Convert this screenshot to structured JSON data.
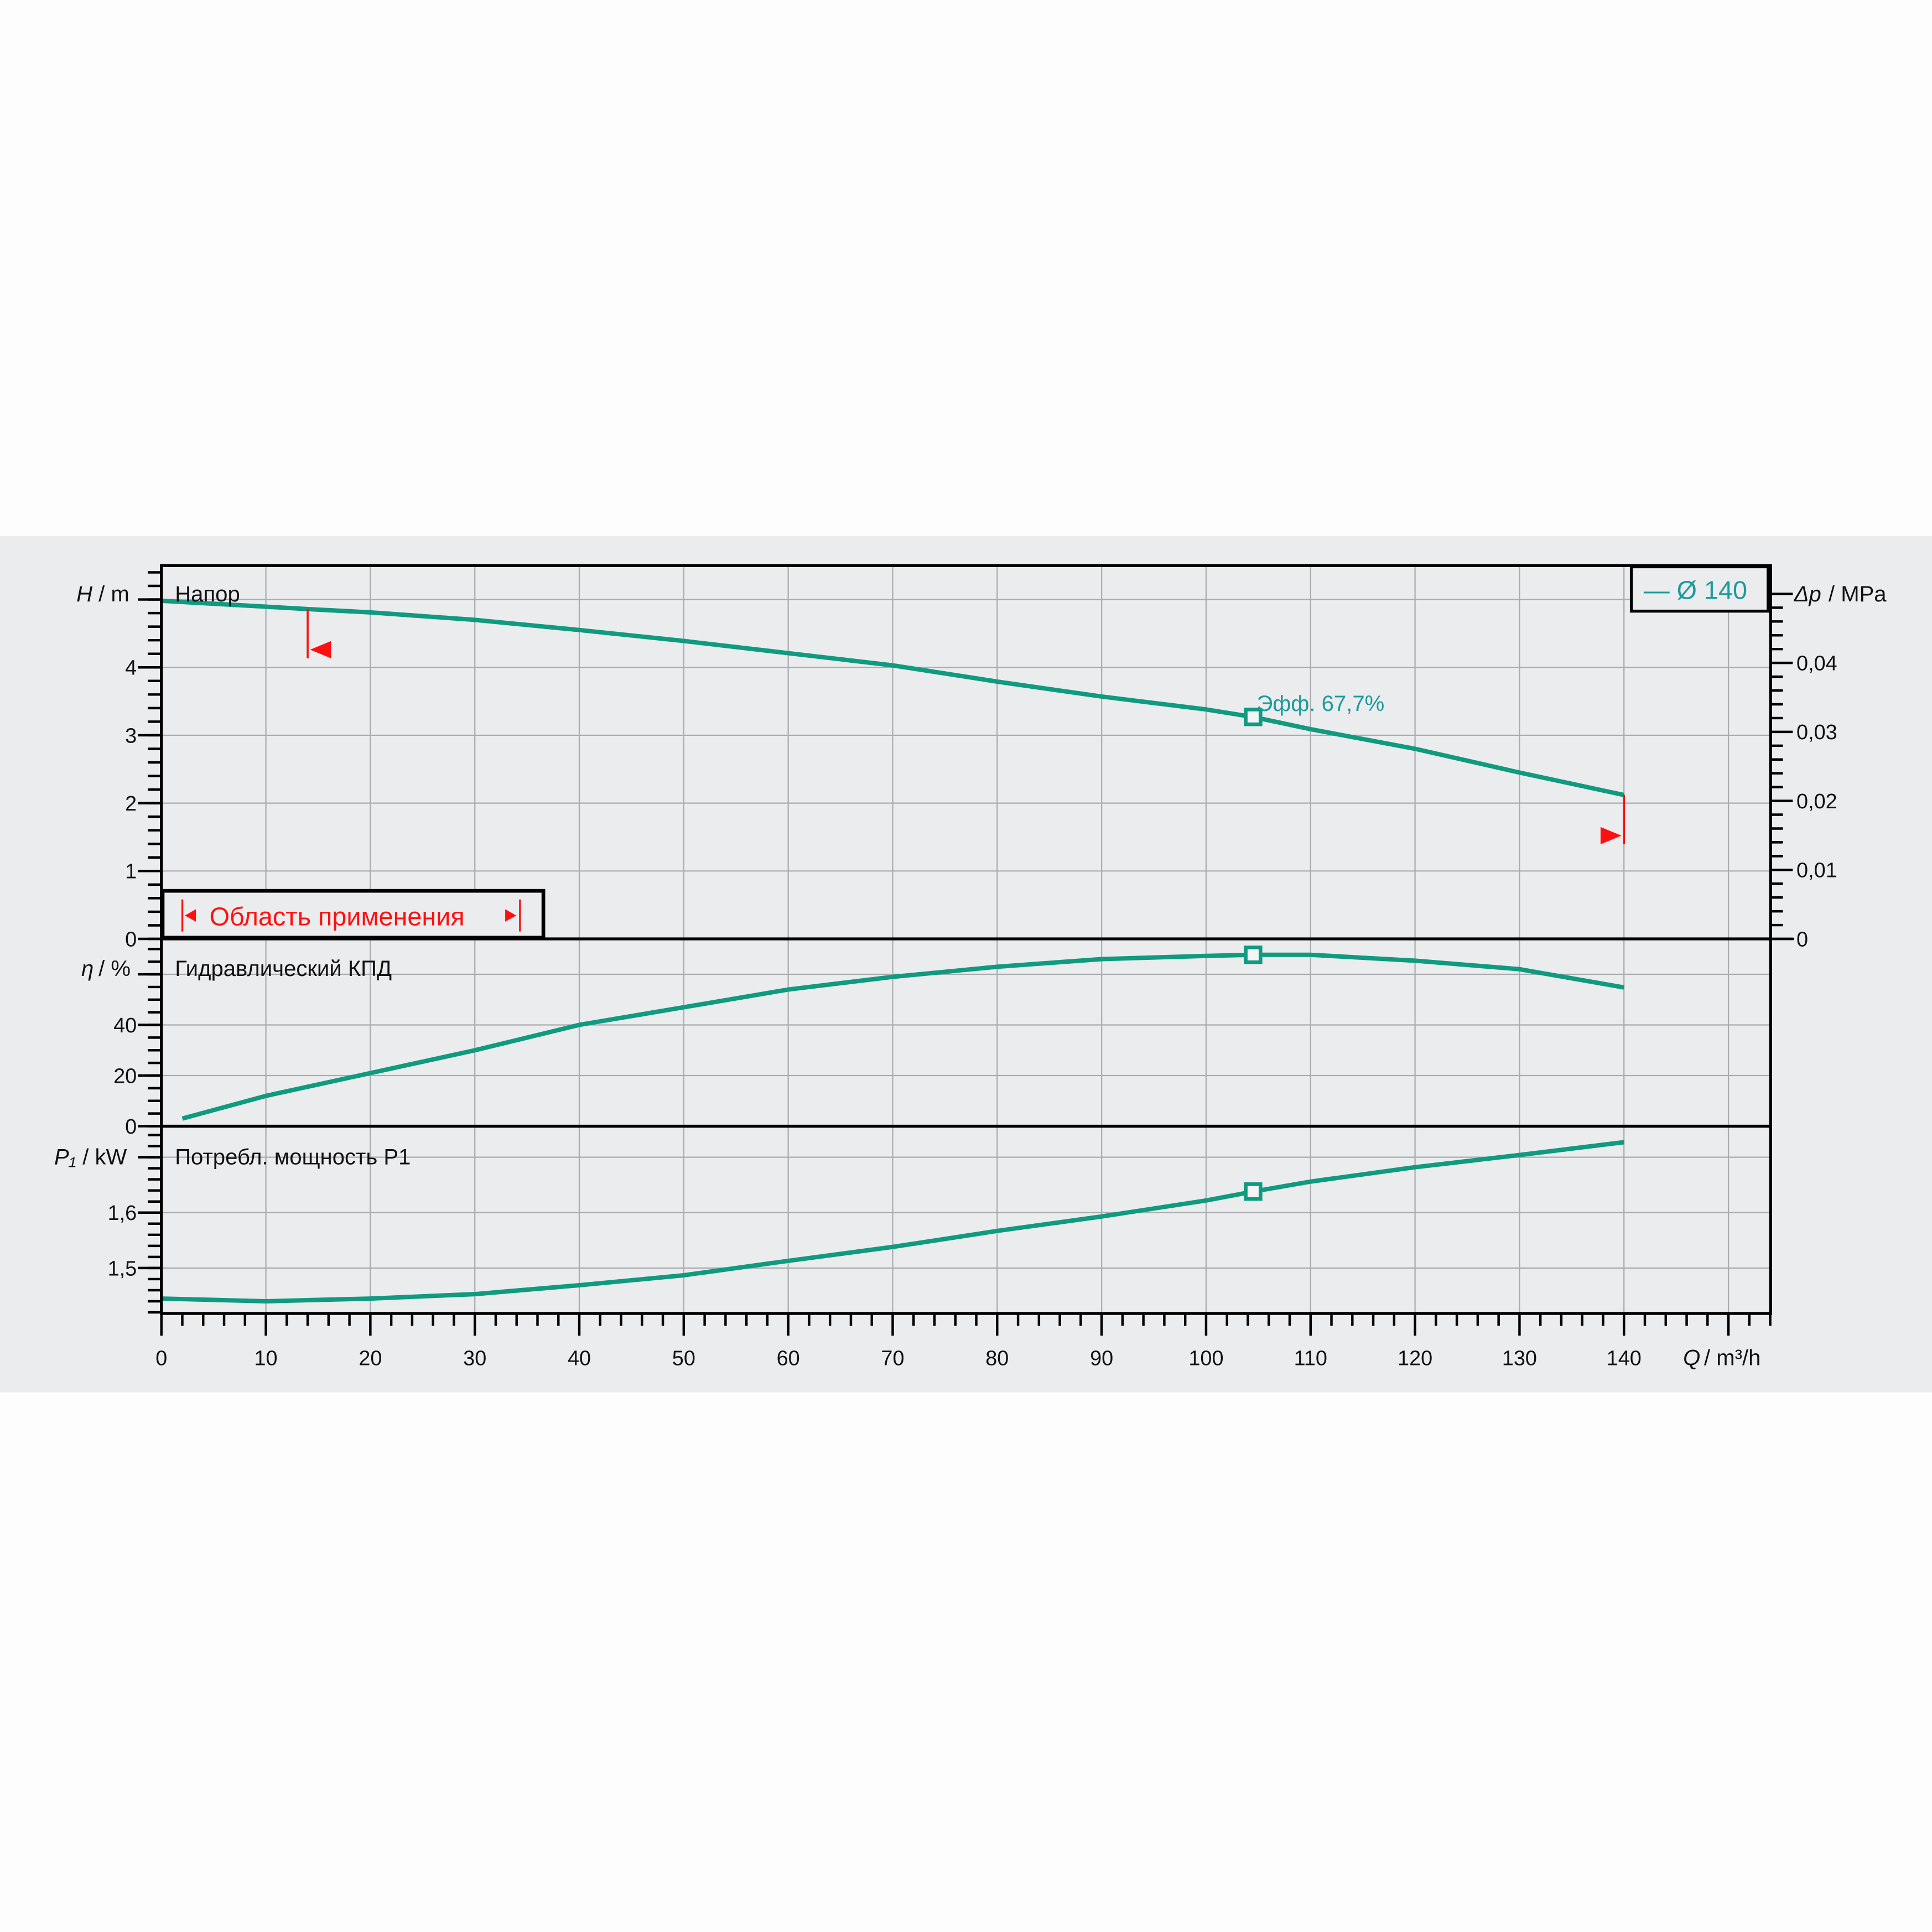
{
  "chart_data": [
    {
      "type": "line",
      "panel": "head",
      "title": "Напор",
      "ylabel_symbol": "H",
      "ylabel_unit": "/ m",
      "ylabel_right_symbol": "Δp",
      "ylabel_right_unit": "/ MPa",
      "ylim": [
        0,
        5.5
      ],
      "yticks": [
        0,
        1,
        2,
        3,
        4
      ],
      "yticks_right": [
        "0",
        "0,01",
        "0,02",
        "0,03",
        "0,04"
      ],
      "yticks_right_values": [
        0,
        0.01,
        0.02,
        0.03,
        0.04
      ],
      "x": [
        0,
        14,
        20,
        30,
        40,
        50,
        60,
        70,
        80,
        90,
        100,
        104.5,
        110,
        120,
        130,
        140
      ],
      "values": [
        4.98,
        4.86,
        4.81,
        4.7,
        4.55,
        4.39,
        4.21,
        4.03,
        3.79,
        3.57,
        3.38,
        3.27,
        3.09,
        2.8,
        2.45,
        2.12
      ],
      "operating_point": {
        "x": 104.5,
        "y": 3.27
      },
      "annotation": "Эфф.  67,7%",
      "application_limits": [
        14,
        140
      ],
      "application_label": "Область применения",
      "legend": "— Ø 140",
      "legend_position": "top-right",
      "grid": true
    },
    {
      "type": "line",
      "panel": "efficiency",
      "title": "Гидравлический КПД",
      "ylabel_symbol": "η",
      "ylabel_unit": "/ %",
      "ylim": [
        0,
        74
      ],
      "yticks": [
        0,
        20,
        40
      ],
      "x": [
        2,
        10,
        20,
        30,
        40,
        50,
        60,
        70,
        80,
        90,
        100,
        104.5,
        110,
        120,
        130,
        140
      ],
      "values": [
        3,
        12,
        21,
        30,
        40,
        47,
        54,
        59,
        63,
        66,
        67.3,
        67.7,
        67.7,
        65.4,
        62,
        54.8
      ],
      "operating_point": {
        "x": 104.5,
        "y": 67.7
      },
      "grid": true
    },
    {
      "type": "line",
      "panel": "power",
      "title": "Потребл. мощность P1",
      "ylabel_symbol": "P₁",
      "ylabel_unit": "/ kW",
      "ylim": [
        1.418,
        1.756
      ],
      "yticks": [
        "1,5",
        "1,6"
      ],
      "yticks_values": [
        1.5,
        1.6
      ],
      "x": [
        0,
        10,
        20,
        30,
        40,
        50,
        60,
        70,
        80,
        90,
        100,
        104.5,
        110,
        120,
        130,
        140
      ],
      "values": [
        1.445,
        1.44,
        1.445,
        1.453,
        1.469,
        1.487,
        1.513,
        1.538,
        1.567,
        1.593,
        1.622,
        1.638,
        1.656,
        1.682,
        1.704,
        1.727
      ],
      "operating_point": {
        "x": 104.5,
        "y": 1.638
      },
      "grid": true
    }
  ],
  "xaxis": {
    "symbol": "Q",
    "unit": "/ m³/h",
    "xlim": [
      0,
      154
    ],
    "ticks": [
      0,
      10,
      20,
      30,
      40,
      50,
      60,
      70,
      80,
      90,
      100,
      110,
      120,
      130,
      140
    ]
  },
  "colors": {
    "curve": "#109a80",
    "label": "#1d9a9a",
    "limit": "#ff1010",
    "background": "#ebecee"
  }
}
